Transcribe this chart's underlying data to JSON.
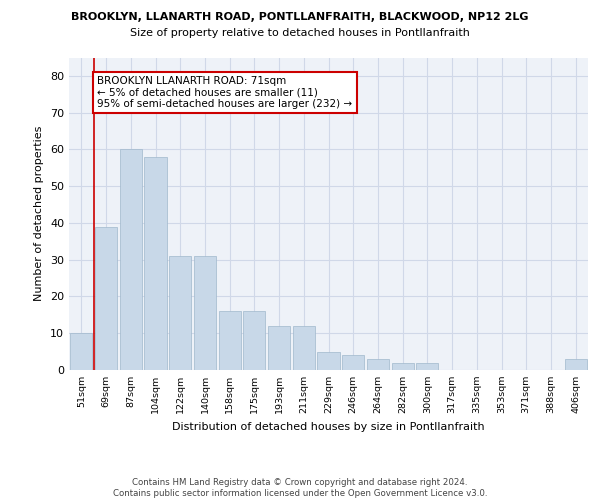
{
  "title1": "BROOKLYN, LLANARTH ROAD, PONTLLANFRAITH, BLACKWOOD, NP12 2LG",
  "title2": "Size of property relative to detached houses in Pontllanfraith",
  "xlabel": "Distribution of detached houses by size in Pontllanfraith",
  "ylabel": "Number of detached properties",
  "categories": [
    "51sqm",
    "69sqm",
    "87sqm",
    "104sqm",
    "122sqm",
    "140sqm",
    "158sqm",
    "175sqm",
    "193sqm",
    "211sqm",
    "229sqm",
    "246sqm",
    "264sqm",
    "282sqm",
    "300sqm",
    "317sqm",
    "335sqm",
    "353sqm",
    "371sqm",
    "388sqm",
    "406sqm"
  ],
  "values": [
    10,
    39,
    60,
    58,
    31,
    31,
    16,
    16,
    12,
    12,
    5,
    4,
    3,
    2,
    2,
    0,
    0,
    0,
    0,
    0,
    3
  ],
  "bar_color": "#c8d8e8",
  "bar_edge_color": "#a0b8cc",
  "marker_color": "#cc0000",
  "annotation_text": "BROOKLYN LLANARTH ROAD: 71sqm\n← 5% of detached houses are smaller (11)\n95% of semi-detached houses are larger (232) →",
  "annotation_box_color": "#ffffff",
  "annotation_box_edge_color": "#cc0000",
  "ylim": [
    0,
    85
  ],
  "yticks": [
    0,
    10,
    20,
    30,
    40,
    50,
    60,
    70,
    80
  ],
  "footer": "Contains HM Land Registry data © Crown copyright and database right 2024.\nContains public sector information licensed under the Open Government Licence v3.0.",
  "grid_color": "#d0d8e8",
  "background_color": "#eef2f8"
}
